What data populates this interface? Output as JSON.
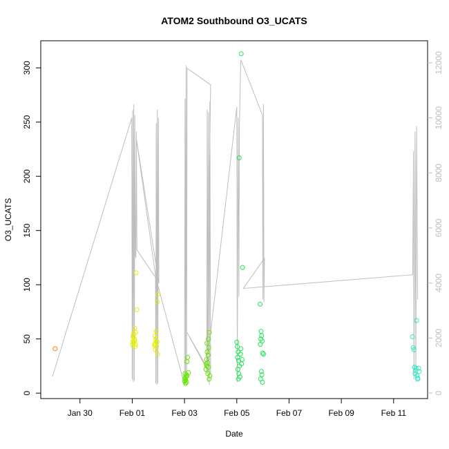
{
  "chart_data": {
    "type": "scatter",
    "title": "ATOM2 Southbound O3_UCATS",
    "xlabel": "Date",
    "ylabel": "O3_UCATS",
    "y2label": "",
    "x_ticks": [
      {
        "day": 30,
        "label": "Jan 30"
      },
      {
        "day": 32,
        "label": "Feb 01"
      },
      {
        "day": 34,
        "label": "Feb 03"
      },
      {
        "day": 36,
        "label": "Feb 05"
      },
      {
        "day": 38,
        "label": "Feb 07"
      },
      {
        "day": 40,
        "label": "Feb 09"
      },
      {
        "day": 42,
        "label": "Feb 11"
      }
    ],
    "xlim_days": [
      28.5,
      43.3
    ],
    "ylim": [
      -5,
      325
    ],
    "y_ticks": [
      0,
      50,
      100,
      150,
      200,
      250,
      300
    ],
    "y2lim": [
      -200,
      12800
    ],
    "y2_ticks": [
      0,
      2000,
      4000,
      6000,
      8000,
      10000,
      12000
    ],
    "y2_color": "#bebebe",
    "grid": false,
    "series": [
      {
        "color": "#ff7f00",
        "points": [
          [
            29.05,
            41
          ]
        ]
      },
      {
        "color": "#e6f000",
        "points": [
          [
            32.02,
            44
          ],
          [
            32.05,
            46
          ],
          [
            32.08,
            50
          ],
          [
            32.03,
            52
          ],
          [
            32.1,
            48
          ],
          [
            32.06,
            55
          ],
          [
            32.09,
            60
          ],
          [
            32.12,
            45
          ],
          [
            32.04,
            53
          ],
          [
            32.07,
            49
          ],
          [
            32.11,
            43
          ],
          [
            32.01,
            47
          ],
          [
            32.13,
            56
          ],
          [
            32.15,
            111
          ],
          [
            32.18,
            77
          ],
          [
            32.85,
            44
          ],
          [
            32.88,
            46
          ],
          [
            32.9,
            50
          ],
          [
            32.87,
            53
          ],
          [
            32.92,
            57
          ],
          [
            32.95,
            47
          ],
          [
            32.89,
            40
          ],
          [
            32.93,
            43
          ],
          [
            32.97,
            36
          ],
          [
            32.91,
            49
          ],
          [
            32.98,
            91
          ],
          [
            32.96,
            84
          ],
          [
            32.86,
            45
          ]
        ]
      },
      {
        "color": "#66e600",
        "points": [
          [
            34.0,
            11
          ],
          [
            34.03,
            13
          ],
          [
            34.06,
            15
          ],
          [
            34.02,
            18
          ],
          [
            34.08,
            10
          ],
          [
            34.05,
            12
          ],
          [
            34.1,
            16
          ],
          [
            34.01,
            14
          ],
          [
            34.07,
            17
          ],
          [
            34.04,
            9
          ],
          [
            34.09,
            29
          ],
          [
            34.12,
            33
          ],
          [
            34.15,
            19
          ],
          [
            34.82,
            22
          ],
          [
            34.85,
            25
          ],
          [
            34.88,
            28
          ],
          [
            34.84,
            31
          ],
          [
            34.9,
            35
          ],
          [
            34.87,
            38
          ],
          [
            34.93,
            42
          ],
          [
            34.86,
            46
          ],
          [
            34.91,
            50
          ],
          [
            34.95,
            56
          ],
          [
            34.89,
            18
          ],
          [
            34.94,
            13
          ],
          [
            34.97,
            16
          ],
          [
            34.83,
            27
          ],
          [
            34.92,
            24
          ]
        ]
      },
      {
        "color": "#1ee650",
        "points": [
          [
            36.0,
            47
          ],
          [
            36.02,
            43
          ],
          [
            36.05,
            38
          ],
          [
            36.03,
            33
          ],
          [
            36.07,
            30
          ],
          [
            36.1,
            25
          ],
          [
            36.04,
            22
          ],
          [
            36.08,
            18
          ],
          [
            36.12,
            15
          ],
          [
            36.06,
            13
          ],
          [
            36.14,
            36
          ],
          [
            36.16,
            41
          ],
          [
            36.2,
            31
          ],
          [
            36.18,
            27
          ],
          [
            36.09,
            217
          ],
          [
            36.17,
            313
          ],
          [
            36.22,
            116
          ],
          [
            36.9,
            45
          ],
          [
            36.92,
            50
          ],
          [
            36.95,
            53
          ],
          [
            36.93,
            57
          ],
          [
            36.97,
            48
          ],
          [
            36.99,
            37
          ],
          [
            37.02,
            36
          ],
          [
            36.94,
            20
          ],
          [
            36.96,
            17
          ],
          [
            36.91,
            13
          ],
          [
            36.98,
            10
          ],
          [
            36.89,
            82
          ]
        ]
      },
      {
        "color": "#33e6c0",
        "points": [
          [
            42.72,
            52
          ],
          [
            42.75,
            42
          ],
          [
            42.78,
            40
          ],
          [
            42.8,
            24
          ],
          [
            42.83,
            21
          ],
          [
            42.86,
            23
          ],
          [
            42.88,
            67
          ],
          [
            42.9,
            16
          ],
          [
            42.93,
            13
          ],
          [
            42.96,
            23
          ],
          [
            42.98,
            20
          ],
          [
            42.82,
            18
          ],
          [
            42.92,
            14
          ]
        ]
      }
    ],
    "y2_series": {
      "color": "#bebebe",
      "points": [
        [
          28.95,
          600
        ],
        [
          31.98,
          10000
        ],
        [
          32.0,
          500
        ],
        [
          32.02,
          10300
        ],
        [
          32.04,
          400
        ],
        [
          32.06,
          10500
        ],
        [
          32.08,
          450
        ],
        [
          32.1,
          10100
        ],
        [
          32.12,
          5000
        ],
        [
          32.14,
          4900
        ],
        [
          32.16,
          9500
        ],
        [
          32.18,
          5200
        ],
        [
          32.89,
          4200
        ],
        [
          32.9,
          350
        ],
        [
          32.92,
          9800
        ],
        [
          32.94,
          300
        ],
        [
          32.96,
          10300
        ],
        [
          32.98,
          350
        ],
        [
          33.0,
          10000
        ],
        [
          33.02,
          4000
        ],
        [
          32.15,
          9300
        ],
        [
          32.9,
          4200
        ],
        [
          34.0,
          300
        ],
        [
          34.02,
          10700
        ],
        [
          34.04,
          350
        ],
        [
          34.06,
          11900
        ],
        [
          34.08,
          300
        ],
        [
          34.1,
          11800
        ],
        [
          35.0,
          11200
        ],
        [
          34.85,
          700
        ],
        [
          34.87,
          10300
        ],
        [
          34.9,
          400
        ],
        [
          34.92,
          10200
        ],
        [
          34.95,
          300
        ],
        [
          34.97,
          10600
        ],
        [
          35.0,
          700
        ],
        [
          34.1,
          2200
        ],
        [
          34.84,
          900
        ],
        [
          36.0,
          10400
        ],
        [
          36.02,
          400
        ],
        [
          36.05,
          10000
        ],
        [
          36.08,
          3500
        ],
        [
          36.1,
          9700
        ],
        [
          36.15,
          12100
        ],
        [
          36.2,
          12000
        ],
        [
          36.98,
          10100
        ],
        [
          37.0,
          3400
        ],
        [
          37.02,
          10500
        ],
        [
          37.04,
          3300
        ],
        [
          37.06,
          4900
        ],
        [
          36.25,
          3800
        ],
        [
          42.73,
          4300
        ],
        [
          42.76,
          8800
        ],
        [
          42.78,
          500
        ],
        [
          42.82,
          9500
        ],
        [
          42.85,
          400
        ],
        [
          42.88,
          9700
        ],
        [
          42.92,
          3400
        ]
      ]
    }
  }
}
